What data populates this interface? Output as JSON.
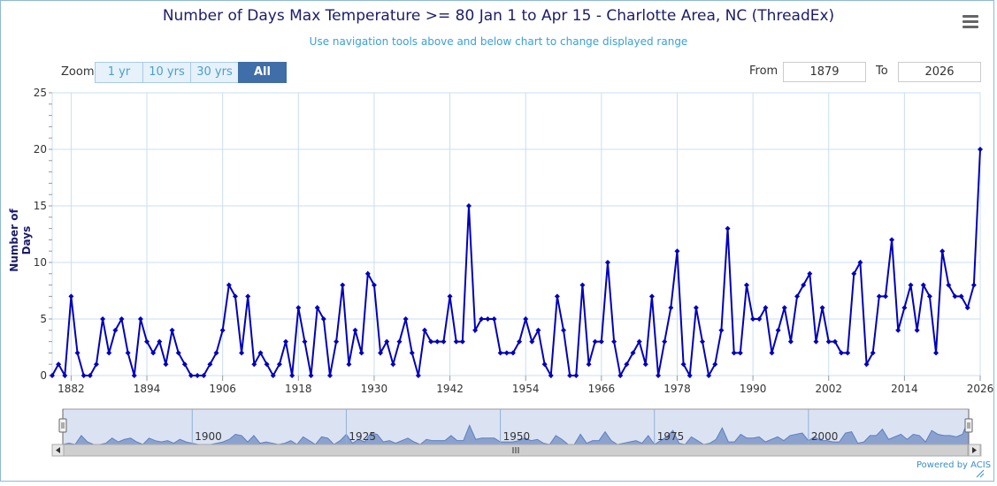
{
  "header": {
    "title": "Number of Days Max Temperature >= 80 Jan 1 to Apr 15 - Charlotte Area, NC (ThreadEx)",
    "subtitle": "Use navigation tools above and below chart to change displayed range"
  },
  "menu": {
    "icon": "hamburger-menu-icon"
  },
  "zoom": {
    "label": "Zoom",
    "buttons": [
      "1 yr",
      "10 yrs",
      "30 yrs",
      "All"
    ],
    "selected": "All"
  },
  "range": {
    "from_label": "From",
    "from_value": "1879",
    "to_label": "To",
    "to_value": "2026"
  },
  "credits": "Powered by ACIS",
  "colors": {
    "series": "#0000bb",
    "navigator_fill": "#7d96c8",
    "button_active": "#3f6ea8",
    "grid": "#c8dff0"
  },
  "chart_data": {
    "type": "line",
    "title": "Number of Days Max Temperature >= 80 Jan 1 to Apr 15 - Charlotte Area, NC (ThreadEx)",
    "xlabel": "",
    "ylabel": "Number of Days",
    "xlim": [
      1879,
      2026
    ],
    "ylim": [
      0,
      25
    ],
    "y_ticks": [
      0,
      5,
      10,
      15,
      20,
      25
    ],
    "x_ticks": [
      1882,
      1894,
      1906,
      1918,
      1930,
      1942,
      1954,
      1966,
      1978,
      1990,
      2002,
      2014,
      2026
    ],
    "navigator_ticks": [
      1900,
      1925,
      1950,
      1975,
      2000
    ],
    "grid": true,
    "legend": "none",
    "x": [
      1879,
      1880,
      1881,
      1882,
      1883,
      1884,
      1885,
      1886,
      1887,
      1888,
      1889,
      1890,
      1891,
      1892,
      1893,
      1894,
      1895,
      1896,
      1897,
      1898,
      1899,
      1900,
      1901,
      1902,
      1903,
      1904,
      1905,
      1906,
      1907,
      1908,
      1909,
      1910,
      1911,
      1912,
      1913,
      1914,
      1915,
      1916,
      1917,
      1918,
      1919,
      1920,
      1921,
      1922,
      1923,
      1924,
      1925,
      1926,
      1927,
      1928,
      1929,
      1930,
      1931,
      1932,
      1933,
      1934,
      1935,
      1936,
      1937,
      1938,
      1939,
      1940,
      1941,
      1942,
      1943,
      1944,
      1945,
      1946,
      1947,
      1948,
      1949,
      1950,
      1951,
      1952,
      1953,
      1954,
      1955,
      1956,
      1957,
      1958,
      1959,
      1960,
      1961,
      1962,
      1963,
      1964,
      1965,
      1966,
      1967,
      1968,
      1969,
      1970,
      1971,
      1972,
      1973,
      1974,
      1975,
      1976,
      1977,
      1978,
      1979,
      1980,
      1981,
      1982,
      1983,
      1984,
      1985,
      1986,
      1987,
      1988,
      1989,
      1990,
      1991,
      1992,
      1993,
      1994,
      1995,
      1996,
      1997,
      1998,
      1999,
      2000,
      2001,
      2002,
      2003,
      2004,
      2005,
      2006,
      2007,
      2008,
      2009,
      2010,
      2011,
      2012,
      2013,
      2014,
      2015,
      2016,
      2017,
      2018,
      2019,
      2020,
      2021,
      2022,
      2023,
      2024,
      2025,
      2026
    ],
    "y": [
      0,
      1,
      0,
      7,
      2,
      0,
      0,
      1,
      5,
      2,
      4,
      5,
      2,
      0,
      5,
      3,
      2,
      3,
      1,
      4,
      2,
      1,
      0,
      0,
      0,
      1,
      2,
      4,
      8,
      7,
      2,
      7,
      1,
      2,
      1,
      0,
      1,
      3,
      0,
      6,
      3,
      0,
      6,
      5,
      0,
      3,
      8,
      1,
      4,
      2,
      9,
      8,
      2,
      3,
      1,
      3,
      5,
      2,
      0,
      4,
      3,
      3,
      3,
      7,
      3,
      3,
      15,
      4,
      5,
      5,
      5,
      2,
      2,
      2,
      3,
      5,
      3,
      4,
      1,
      0,
      7,
      4,
      0,
      0,
      8,
      1,
      3,
      3,
      10,
      3,
      0,
      1,
      2,
      3,
      1,
      7,
      0,
      3,
      6,
      11,
      1,
      0,
      6,
      3,
      0,
      1,
      4,
      13,
      2,
      2,
      8,
      5,
      5,
      6,
      2,
      4,
      6,
      3,
      7,
      8,
      9,
      3,
      6,
      3,
      3,
      2,
      2,
      9,
      10,
      1,
      2,
      7,
      7,
      12,
      4,
      6,
      8,
      4,
      8,
      7,
      2,
      11,
      8,
      7,
      7,
      6,
      8,
      20
    ]
  }
}
